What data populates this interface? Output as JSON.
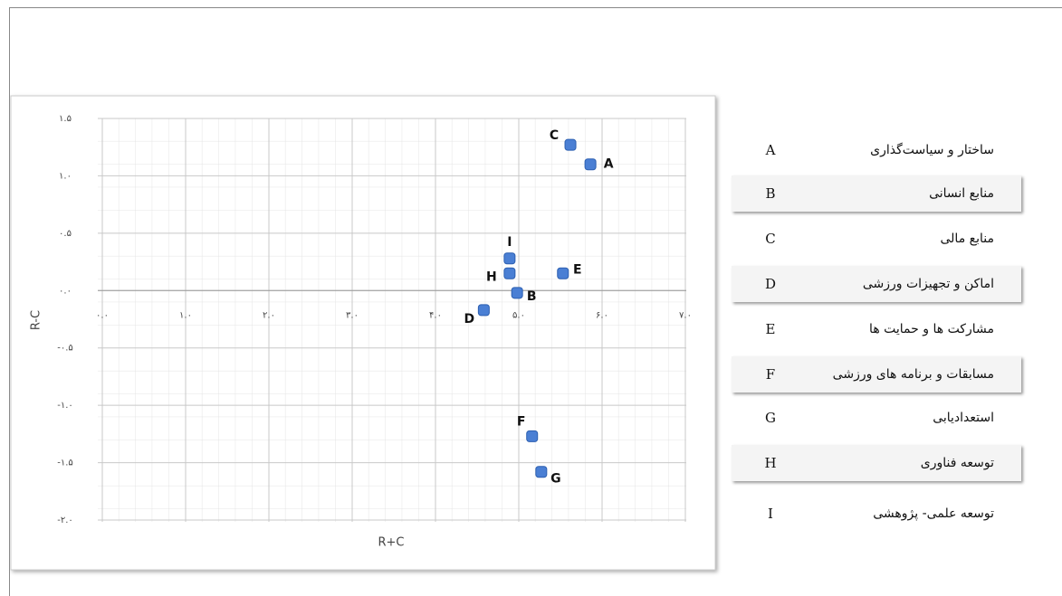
{
  "chart_data": {
    "type": "scatter",
    "x_label": "R+C",
    "y_label": "R-C",
    "color": "#4a7fd4",
    "grid": true,
    "point_labels": [
      "C",
      "A",
      "I",
      "H",
      "E",
      "B",
      "D",
      "F",
      "G"
    ],
    "x": [
      5.62,
      5.86,
      4.89,
      4.89,
      5.53,
      4.98,
      4.58,
      5.16,
      5.27
    ],
    "values": [
      1.27,
      1.1,
      0.28,
      0.15,
      0.15,
      -0.02,
      -0.17,
      -1.27,
      -1.58
    ],
    "xlim": [
      0,
      7
    ],
    "ylim": [
      -2,
      1.5
    ],
    "xticks": [
      {
        "value": 0,
        "label": "۰.۰"
      },
      {
        "value": 1,
        "label": "۱.۰"
      },
      {
        "value": 2,
        "label": "۲.۰"
      },
      {
        "value": 3,
        "label": "۳.۰"
      },
      {
        "value": 4,
        "label": "۴.۰"
      },
      {
        "value": 5,
        "label": "۵.۰"
      },
      {
        "value": 6,
        "label": "۶.۰"
      },
      {
        "value": 7,
        "label": "۷.۰"
      }
    ],
    "yticks": [
      {
        "value": 1.5,
        "label": "۱.۵"
      },
      {
        "value": 1,
        "label": "۱.۰"
      },
      {
        "value": 0.5,
        "label": "۰.۵"
      },
      {
        "value": 0,
        "label": "۰.۰"
      },
      {
        "value": -0.5,
        "label": "-۰.۵"
      },
      {
        "value": -1,
        "label": "-۱.۰"
      },
      {
        "value": -1.5,
        "label": "-۱.۵"
      },
      {
        "value": -2,
        "label": "-۲.۰"
      }
    ]
  },
  "legend_table": {
    "rows": [
      [
        "A",
        "ساختار و سیاست‌گذاری"
      ],
      [
        "B",
        "منابع انسانی"
      ],
      [
        "C",
        "منابع مالی"
      ],
      [
        "D",
        "اماکن و تجهیزات ورزشی"
      ],
      [
        "E",
        "مشارکت ها و حمایت ها"
      ],
      [
        "F",
        "مسابقات و برنامه های ورزشی"
      ],
      [
        "G",
        "استعدادیابی"
      ],
      [
        "H",
        "توسعه فناوری"
      ],
      [
        "I",
        "توسعه علمی- پژوهشی"
      ]
    ]
  }
}
